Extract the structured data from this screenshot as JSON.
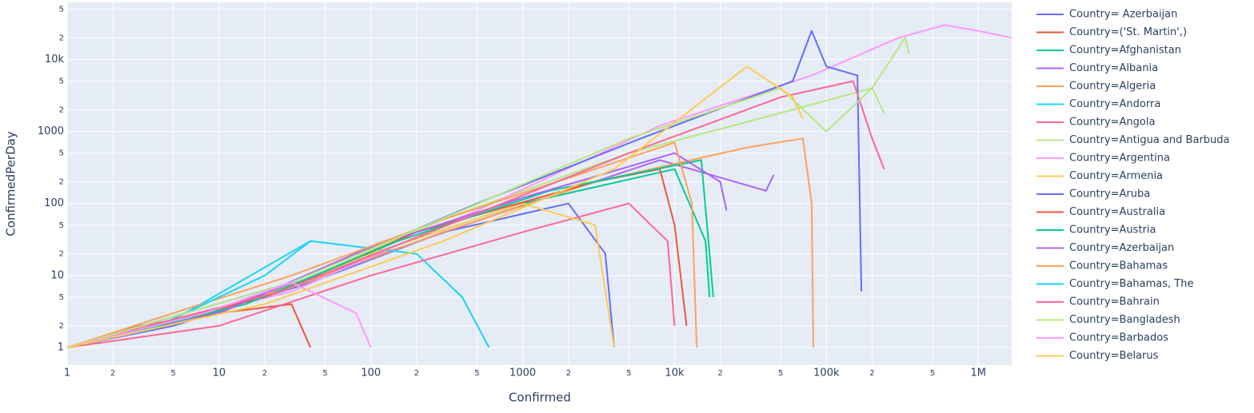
{
  "chart_data": {
    "type": "line",
    "x_label": "Confirmed",
    "y_label": "ConfirmedPerDay",
    "log_x": true,
    "log_y": true,
    "grid": true,
    "legend": "right",
    "background": "#e5ecf6",
    "xlim": [
      1,
      1660000
    ],
    "ylim": [
      0.57,
      62000
    ],
    "xticks": [
      1,
      {
        "value": 2,
        "label": "2"
      },
      {
        "value": 5,
        "label": "5"
      },
      10,
      {
        "value": 20,
        "label": "2"
      },
      {
        "value": 50,
        "label": "5"
      },
      100,
      {
        "value": 200,
        "label": "2"
      },
      {
        "value": 500,
        "label": "5"
      },
      1000,
      {
        "value": 2000,
        "label": "2"
      },
      {
        "value": 5000,
        "label": "5"
      },
      {
        "value": 10000,
        "label": "10k"
      },
      {
        "value": 20000,
        "label": "2"
      },
      {
        "value": 50000,
        "label": "5"
      },
      {
        "value": 100000,
        "label": "100k"
      },
      {
        "value": 200000,
        "label": "2"
      },
      {
        "value": 500000,
        "label": "5"
      },
      {
        "value": 1000000,
        "label": "1M"
      }
    ],
    "yticks": [
      1,
      {
        "value": 2,
        "label": "2"
      },
      {
        "value": 5,
        "label": "5"
      },
      10,
      {
        "value": 20,
        "label": "2"
      },
      {
        "value": 50,
        "label": "5"
      },
      100,
      {
        "value": 200,
        "label": "2"
      },
      {
        "value": 500,
        "label": "5"
      },
      1000,
      {
        "value": 2000,
        "label": "2"
      },
      {
        "value": 5000,
        "label": "5"
      },
      {
        "value": 10000,
        "label": "10k"
      },
      {
        "value": 20000,
        "label": "2"
      },
      {
        "value": 50000,
        "label": "5"
      }
    ],
    "series": [
      {
        "name": "Country= Azerbaijan",
        "color": "#636efa",
        "x": [
          1,
          5,
          40,
          300,
          2000,
          3500,
          4000
        ],
        "values": [
          1,
          2,
          8,
          40,
          100,
          20,
          1
        ]
      },
      {
        "name": "Country=('St. Martin',)",
        "color": "#EF553B",
        "x": [
          1,
          3,
          10,
          30,
          40
        ],
        "values": [
          1,
          2,
          3,
          4,
          1
        ]
      },
      {
        "name": "Country=Afghanistan",
        "color": "#00cc96",
        "x": [
          1,
          10,
          100,
          1000,
          10000,
          16000,
          17000
        ],
        "values": [
          1,
          3,
          20,
          100,
          300,
          30,
          5
        ]
      },
      {
        "name": "Country=Albania",
        "color": "#ab63fa",
        "x": [
          1,
          8,
          80,
          800,
          8000,
          40000,
          45000
        ],
        "values": [
          1,
          3,
          15,
          80,
          400,
          150,
          250
        ]
      },
      {
        "name": "Country=Algeria",
        "color": "#FFA15A",
        "x": [
          1,
          20,
          300,
          3000,
          30000,
          70000,
          80000,
          82000
        ],
        "values": [
          1,
          5,
          40,
          200,
          600,
          800,
          100,
          1
        ]
      },
      {
        "name": "Country=Andorra",
        "color": "#19d3f3",
        "x": [
          1,
          6,
          40,
          200,
          400,
          600
        ],
        "values": [
          1,
          3,
          30,
          20,
          5,
          1
        ]
      },
      {
        "name": "Country=Angola",
        "color": "#FF6692",
        "x": [
          1,
          10,
          100,
          1000,
          5000,
          9000,
          10000
        ],
        "values": [
          1,
          2,
          10,
          40,
          100,
          30,
          2
        ]
      },
      {
        "name": "Country=Antigua and Barbuda",
        "color": "#B6E880",
        "x": [
          1,
          20,
          300,
          5000,
          60000,
          200000,
          330000,
          350000
        ],
        "values": [
          1,
          5,
          60,
          500,
          2000,
          4000,
          20000,
          12000
        ]
      },
      {
        "name": "Country=Argentina",
        "color": "#FF97FF",
        "x": [
          1,
          30,
          500,
          8000,
          80000,
          300000,
          600000,
          1000000,
          1660000
        ],
        "values": [
          1,
          6,
          80,
          1200,
          6000,
          20000,
          30000,
          25000,
          20000
        ]
      },
      {
        "name": "Country=Armenia",
        "color": "#FECB52",
        "x": [
          1,
          10,
          100,
          1000,
          3000,
          4000
        ],
        "values": [
          1,
          3,
          20,
          100,
          50,
          1
        ]
      },
      {
        "name": "Country=Aruba",
        "color": "#636efa",
        "x": [
          1,
          30,
          500,
          6000,
          60000,
          80000,
          100000,
          160000,
          170000
        ],
        "values": [
          1,
          8,
          100,
          800,
          5000,
          25000,
          8000,
          6000,
          6
        ]
      },
      {
        "name": "Country=Australia",
        "color": "#EF553B",
        "x": [
          1,
          20,
          200,
          3000,
          8000,
          10000,
          12000
        ],
        "values": [
          1,
          5,
          40,
          200,
          300,
          50,
          2
        ]
      },
      {
        "name": "Country=Austria",
        "color": "#00cc96",
        "x": [
          1,
          15,
          150,
          1500,
          15000,
          17000,
          18000
        ],
        "values": [
          1,
          4,
          30,
          150,
          400,
          20,
          5
        ]
      },
      {
        "name": "Country=Azerbaijan",
        "color": "#ab63fa",
        "x": [
          1,
          10,
          100,
          1000,
          10000,
          20000,
          22000
        ],
        "values": [
          1,
          3,
          25,
          120,
          500,
          200,
          80
        ]
      },
      {
        "name": "Country=Bahamas",
        "color": "#FFA15A",
        "x": [
          1,
          5,
          30,
          300,
          3000,
          10000,
          13000,
          14000
        ],
        "values": [
          1,
          3,
          10,
          60,
          300,
          700,
          100,
          1
        ]
      },
      {
        "name": "Country=Bahamas, The",
        "color": "#19d3f3",
        "x": [
          1,
          4,
          20,
          40
        ],
        "values": [
          1,
          2,
          10,
          30
        ]
      },
      {
        "name": "Country=Bahrain",
        "color": "#FF6692",
        "x": [
          1,
          25,
          400,
          5000,
          50000,
          150000,
          200000,
          240000
        ],
        "values": [
          1,
          6,
          60,
          500,
          3000,
          5000,
          800,
          300
        ]
      },
      {
        "name": "Country=Bangladesh",
        "color": "#B6E880",
        "x": [
          1,
          30,
          400,
          5000,
          50000,
          100000,
          200000,
          240000
        ],
        "values": [
          1,
          8,
          80,
          800,
          4000,
          1000,
          4000,
          1800
        ]
      },
      {
        "name": "Country=Barbados",
        "color": "#FF97FF",
        "x": [
          1,
          8,
          30,
          80,
          100
        ],
        "values": [
          1,
          3,
          8,
          3,
          1
        ]
      },
      {
        "name": "Country=Belarus",
        "color": "#FECB52",
        "x": [
          1,
          20,
          300,
          4000,
          30000,
          60000,
          70000
        ],
        "values": [
          1,
          4,
          30,
          300,
          8000,
          3000,
          1500
        ]
      }
    ]
  }
}
